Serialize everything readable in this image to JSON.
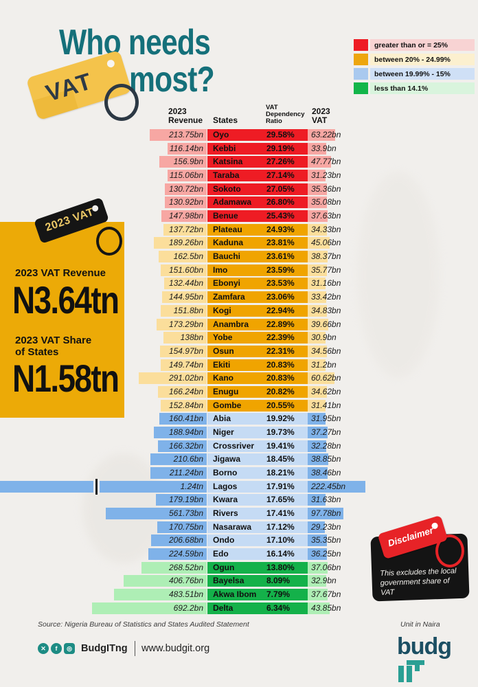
{
  "title": {
    "line1": "Who needs",
    "line2": "most?",
    "tag_label": "VAT",
    "accent_color": "#15707a",
    "tag_color": "#f4c34b"
  },
  "legend": {
    "items": [
      {
        "label": "greater than or = 25%",
        "swatch": "#ee1c24",
        "strip": "#f8d3d3"
      },
      {
        "label": "between 20% - 24.99%",
        "swatch": "#eda60f",
        "strip": "#fcf0cf"
      },
      {
        "label": "between 19.99% - 15%",
        "swatch": "#a9c9ef",
        "strip": "#cfe0f6"
      },
      {
        "label": "less than 14.1%",
        "swatch": "#13b54a",
        "strip": "#d9f4dd"
      }
    ]
  },
  "table_headers": {
    "revenue": "2023\nRevenue",
    "states": "States",
    "ratio": "VAT\nDependency\nRatio",
    "vat": "2023\nVAT"
  },
  "category_colors": {
    "red": {
      "center": "#ee1c24",
      "bar": "#f7a7a3"
    },
    "orange": {
      "center": "#f0a400",
      "bar": "#fbde9b"
    },
    "blue": {
      "center": "#c5dbf4",
      "bar": "#7fb2e9"
    },
    "green": {
      "center": "#14b14a",
      "bar": "#aeeeb5"
    }
  },
  "chart_data": {
    "type": "table",
    "title": "Who needs VAT most?",
    "unit": "Naira",
    "columns": [
      "2023 Revenue",
      "States",
      "VAT Dependency Ratio",
      "2023 VAT"
    ],
    "legend_categories": [
      {
        "name": "red",
        "rule": "greater than or = 25%"
      },
      {
        "name": "orange",
        "rule": "between 20% - 24.99%"
      },
      {
        "name": "blue",
        "rule": "between 19.99% - 15%"
      },
      {
        "name": "green",
        "rule": "less than 14.1%"
      }
    ],
    "rows": [
      {
        "revenue": "213.75bn",
        "revenue_bn": 213.75,
        "state": "Oyo",
        "ratio": "29.58%",
        "ratio_pct": 29.58,
        "vat": "63.22bn",
        "vat_bn": 63.22,
        "category": "red"
      },
      {
        "revenue": "116.14bn",
        "revenue_bn": 116.14,
        "state": "Kebbi",
        "ratio": "29.19%",
        "ratio_pct": 29.19,
        "vat": "33.9bn",
        "vat_bn": 33.9,
        "category": "red"
      },
      {
        "revenue": "156.9bn",
        "revenue_bn": 156.9,
        "state": "Katsina",
        "ratio": "27.26%",
        "ratio_pct": 27.26,
        "vat": "47.77bn",
        "vat_bn": 47.77,
        "category": "red"
      },
      {
        "revenue": "115.06bn",
        "revenue_bn": 115.06,
        "state": "Taraba",
        "ratio": "27.14%",
        "ratio_pct": 27.14,
        "vat": "31.23bn",
        "vat_bn": 31.23,
        "category": "red"
      },
      {
        "revenue": "130.72bn",
        "revenue_bn": 130.72,
        "state": "Sokoto",
        "ratio": "27.05%",
        "ratio_pct": 27.05,
        "vat": "35.36bn",
        "vat_bn": 35.36,
        "category": "red"
      },
      {
        "revenue": "130.92bn",
        "revenue_bn": 130.92,
        "state": "Adamawa",
        "ratio": "26.80%",
        "ratio_pct": 26.8,
        "vat": "35.08bn",
        "vat_bn": 35.08,
        "category": "red"
      },
      {
        "revenue": "147.98bn",
        "revenue_bn": 147.98,
        "state": "Benue",
        "ratio": "25.43%",
        "ratio_pct": 25.43,
        "vat": "37.63bn",
        "vat_bn": 37.63,
        "category": "red"
      },
      {
        "revenue": "137.72bn",
        "revenue_bn": 137.72,
        "state": "Plateau",
        "ratio": "24.93%",
        "ratio_pct": 24.93,
        "vat": "34.33bn",
        "vat_bn": 34.33,
        "category": "orange"
      },
      {
        "revenue": "189.26bn",
        "revenue_bn": 189.26,
        "state": "Kaduna",
        "ratio": "23.81%",
        "ratio_pct": 23.81,
        "vat": "45.06bn",
        "vat_bn": 45.06,
        "category": "orange"
      },
      {
        "revenue": "162.5bn",
        "revenue_bn": 162.5,
        "state": "Bauchi",
        "ratio": "23.61%",
        "ratio_pct": 23.61,
        "vat": "38.37bn",
        "vat_bn": 38.37,
        "category": "orange"
      },
      {
        "revenue": "151.60bn",
        "revenue_bn": 151.6,
        "state": "Imo",
        "ratio": "23.59%",
        "ratio_pct": 23.59,
        "vat": "35.77bn",
        "vat_bn": 35.77,
        "category": "orange"
      },
      {
        "revenue": "132.44bn",
        "revenue_bn": 132.44,
        "state": "Ebonyi",
        "ratio": "23.53%",
        "ratio_pct": 23.53,
        "vat": "31.16bn",
        "vat_bn": 31.16,
        "category": "orange"
      },
      {
        "revenue": "144.95bn",
        "revenue_bn": 144.95,
        "state": "Zamfara",
        "ratio": "23.06%",
        "ratio_pct": 23.06,
        "vat": "33.42bn",
        "vat_bn": 33.42,
        "category": "orange"
      },
      {
        "revenue": "151.8bn",
        "revenue_bn": 151.8,
        "state": "Kogi",
        "ratio": "22.94%",
        "ratio_pct": 22.94,
        "vat": "34.83bn",
        "vat_bn": 34.83,
        "category": "orange"
      },
      {
        "revenue": "173.29bn",
        "revenue_bn": 173.29,
        "state": "Anambra",
        "ratio": "22.89%",
        "ratio_pct": 22.89,
        "vat": "39.66bn",
        "vat_bn": 39.66,
        "category": "orange"
      },
      {
        "revenue": "138bn",
        "revenue_bn": 138,
        "state": "Yobe",
        "ratio": "22.39%",
        "ratio_pct": 22.39,
        "vat": "30.9bn",
        "vat_bn": 30.9,
        "category": "orange"
      },
      {
        "revenue": "154.97bn",
        "revenue_bn": 154.97,
        "state": "Osun",
        "ratio": "22.31%",
        "ratio_pct": 22.31,
        "vat": "34.56bn",
        "vat_bn": 34.56,
        "category": "orange"
      },
      {
        "revenue": "149.74bn",
        "revenue_bn": 149.74,
        "state": "Ekiti",
        "ratio": "20.83%",
        "ratio_pct": 20.83,
        "vat": "31.2bn",
        "vat_bn": 31.2,
        "category": "orange"
      },
      {
        "revenue": "291.02bn",
        "revenue_bn": 291.02,
        "state": "Kano",
        "ratio": "20.83%",
        "ratio_pct": 20.83,
        "vat": "60.62bn",
        "vat_bn": 60.62,
        "category": "orange"
      },
      {
        "revenue": "166.24bn",
        "revenue_bn": 166.24,
        "state": "Enugu",
        "ratio": "20.82%",
        "ratio_pct": 20.82,
        "vat": "34.62bn",
        "vat_bn": 34.62,
        "category": "orange"
      },
      {
        "revenue": "152.84bn",
        "revenue_bn": 152.84,
        "state": "Gombe",
        "ratio": "20.55%",
        "ratio_pct": 20.55,
        "vat": "31.41bn",
        "vat_bn": 31.41,
        "category": "orange"
      },
      {
        "revenue": "160.41bn",
        "revenue_bn": 160.41,
        "state": "Abia",
        "ratio": "19.92%",
        "ratio_pct": 19.92,
        "vat": "31.95bn",
        "vat_bn": 31.95,
        "category": "blue"
      },
      {
        "revenue": "188.94bn",
        "revenue_bn": 188.94,
        "state": "Niger",
        "ratio": "19.73%",
        "ratio_pct": 19.73,
        "vat": "37.27bn",
        "vat_bn": 37.27,
        "category": "blue"
      },
      {
        "revenue": "166.32bn",
        "revenue_bn": 166.32,
        "state": "Crossriver",
        "ratio": "19.41%",
        "ratio_pct": 19.41,
        "vat": "32.28bn",
        "vat_bn": 32.28,
        "category": "blue"
      },
      {
        "revenue": "210.6bn",
        "revenue_bn": 210.6,
        "state": "Jigawa",
        "ratio": "18.45%",
        "ratio_pct": 18.45,
        "vat": "38.85bn",
        "vat_bn": 38.85,
        "category": "blue"
      },
      {
        "revenue": "211.24bn",
        "revenue_bn": 211.24,
        "state": "Borno",
        "ratio": "18.21%",
        "ratio_pct": 18.21,
        "vat": "38.46bn",
        "vat_bn": 38.46,
        "category": "blue"
      },
      {
        "revenue": "1.24tn",
        "revenue_bn": 1240,
        "state": "Lagos",
        "ratio": "17.91%",
        "ratio_pct": 17.91,
        "vat": "222.45bn",
        "vat_bn": 222.45,
        "category": "blue",
        "break": true
      },
      {
        "revenue": "179.19bn",
        "revenue_bn": 179.19,
        "state": "Kwara",
        "ratio": "17.65%",
        "ratio_pct": 17.65,
        "vat": "31.63bn",
        "vat_bn": 31.63,
        "category": "blue"
      },
      {
        "revenue": "561.73bn",
        "revenue_bn": 561.73,
        "state": "Rivers",
        "ratio": "17.41%",
        "ratio_pct": 17.41,
        "vat": "97.78bn",
        "vat_bn": 97.78,
        "category": "blue"
      },
      {
        "revenue": "170.75bn",
        "revenue_bn": 170.75,
        "state": "Nasarawa",
        "ratio": "17.12%",
        "ratio_pct": 17.12,
        "vat": "29.23bn",
        "vat_bn": 29.23,
        "category": "blue"
      },
      {
        "revenue": "206.68bn",
        "revenue_bn": 206.68,
        "state": "Ondo",
        "ratio": "17.10%",
        "ratio_pct": 17.1,
        "vat": "35.35bn",
        "vat_bn": 35.35,
        "category": "blue"
      },
      {
        "revenue": "224.59bn",
        "revenue_bn": 224.59,
        "state": "Edo",
        "ratio": "16.14%",
        "ratio_pct": 16.14,
        "vat": "36.25bn",
        "vat_bn": 36.25,
        "category": "blue"
      },
      {
        "revenue": "268.52bn",
        "revenue_bn": 268.52,
        "state": "Ogun",
        "ratio": "13.80%",
        "ratio_pct": 13.8,
        "vat": "37.06bn",
        "vat_bn": 37.06,
        "category": "green"
      },
      {
        "revenue": "406.76bn",
        "revenue_bn": 406.76,
        "state": "Bayelsa",
        "ratio": "8.09%",
        "ratio_pct": 8.09,
        "vat": "32.9bn",
        "vat_bn": 32.9,
        "category": "green"
      },
      {
        "revenue": "483.51bn",
        "revenue_bn": 483.51,
        "state": "Akwa Ibom",
        "ratio": "7.79%",
        "ratio_pct": 7.79,
        "vat": "37.67bn",
        "vat_bn": 37.67,
        "category": "green"
      },
      {
        "revenue": "692.2bn",
        "revenue_bn": 692.2,
        "state": "Delta",
        "ratio": "6.34%",
        "ratio_pct": 6.34,
        "vat": "43.85bn",
        "vat_bn": 43.85,
        "category": "green"
      }
    ]
  },
  "summary_panel": {
    "tag_label": "2023 VAT",
    "revenue_label": "2023 VAT Revenue",
    "revenue_value": "N3.64tn",
    "share_label": "2023 VAT Share\nof States",
    "share_value": "N1.58tn",
    "panel_color": "#ecaa07"
  },
  "disclaimer": {
    "tag_label": "Disclaimer",
    "text": "This excludes the local government share of VAT"
  },
  "footer": {
    "source": "Source: Nigeria Bureau of Statistics and States Audited Statement",
    "unit_note": "Unit in Naira",
    "social_handle": "BudgITng",
    "website": "www.budgit.org",
    "logo_text": "budg",
    "logo_suffix": "IT",
    "brand_teal": "#2a9f94"
  }
}
